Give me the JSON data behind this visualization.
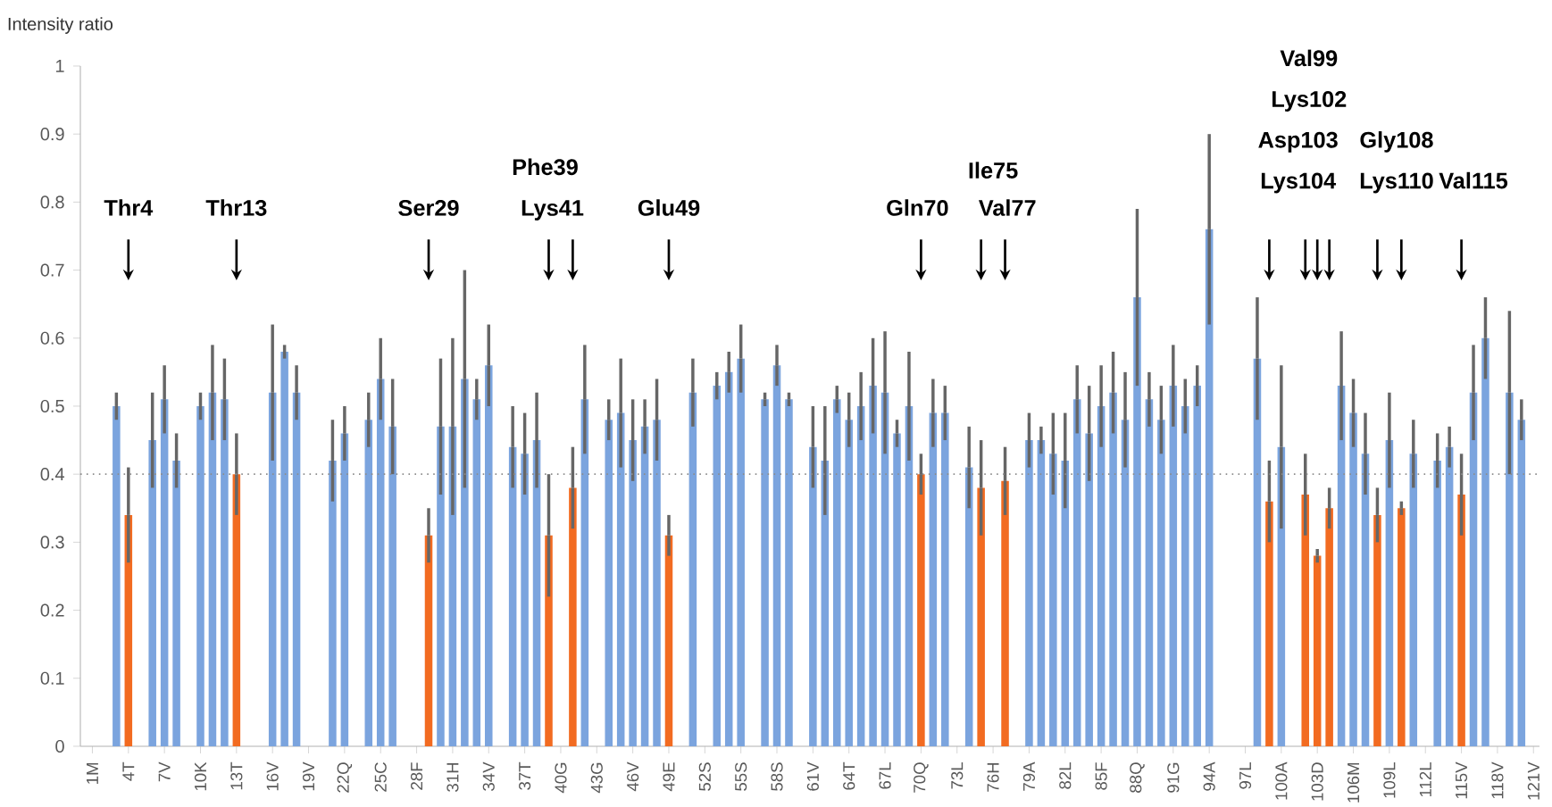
{
  "chart_data": {
    "type": "bar",
    "ylabel": "Intensity ratio",
    "categories": [
      "1M",
      null,
      null,
      "4T",
      null,
      null,
      "7V",
      null,
      null,
      "10K",
      null,
      null,
      "13T",
      null,
      null,
      "16V",
      null,
      null,
      "19V",
      null,
      null,
      "22Q",
      null,
      null,
      "25C",
      null,
      null,
      "28F",
      null,
      null,
      "31H",
      null,
      null,
      "34V",
      null,
      null,
      "37T",
      null,
      null,
      "40G",
      null,
      null,
      "43G",
      null,
      null,
      "46V",
      null,
      null,
      "49E",
      null,
      null,
      "52S",
      null,
      null,
      "55S",
      null,
      null,
      "58S",
      null,
      null,
      "61V",
      null,
      null,
      "64T",
      null,
      null,
      "67L",
      null,
      null,
      "70Q",
      null,
      null,
      "73L",
      null,
      null,
      "76H",
      null,
      null,
      "79A",
      null,
      null,
      "82L",
      null,
      null,
      "85F",
      null,
      null,
      "88Q",
      null,
      null,
      "91G",
      null,
      null,
      "94A",
      null,
      null,
      "97L",
      null,
      null,
      "100A",
      null,
      null,
      "103D",
      null,
      null,
      "106M",
      null,
      null,
      "109L",
      null,
      null,
      "112L",
      null,
      null,
      "115V",
      null,
      null,
      "118V",
      null,
      null,
      "121V"
    ],
    "values": [
      null,
      null,
      0.5,
      0.34,
      null,
      0.45,
      0.51,
      0.42,
      null,
      0.5,
      0.52,
      0.51,
      0.4,
      null,
      null,
      0.52,
      0.58,
      0.52,
      null,
      null,
      0.42,
      0.46,
      null,
      0.48,
      0.54,
      0.47,
      null,
      null,
      0.31,
      0.47,
      0.47,
      0.54,
      0.51,
      0.56,
      null,
      0.44,
      0.43,
      0.45,
      0.31,
      null,
      0.38,
      0.51,
      null,
      0.48,
      0.49,
      0.45,
      0.47,
      0.48,
      0.31,
      null,
      0.52,
      null,
      0.53,
      0.55,
      0.57,
      null,
      0.51,
      0.56,
      0.51,
      null,
      0.44,
      0.42,
      0.51,
      0.48,
      0.5,
      0.53,
      0.52,
      0.46,
      0.5,
      0.4,
      0.49,
      0.49,
      null,
      0.41,
      0.38,
      null,
      0.39,
      null,
      0.45,
      0.45,
      0.43,
      0.42,
      0.51,
      0.46,
      0.5,
      0.52,
      0.48,
      0.66,
      0.51,
      0.48,
      0.53,
      0.5,
      0.53,
      0.76,
      null,
      null,
      null,
      0.57,
      0.36,
      0.44,
      null,
      0.37,
      0.28,
      0.35,
      0.53,
      0.49,
      0.43,
      0.34,
      0.45,
      0.35,
      0.43,
      null,
      0.42,
      0.44,
      0.37,
      0.52,
      0.6,
      null,
      0.52,
      0.48,
      null
    ],
    "errors": [
      null,
      null,
      0.02,
      0.07,
      null,
      0.07,
      0.05,
      0.04,
      null,
      0.02,
      0.07,
      0.06,
      0.06,
      null,
      null,
      0.1,
      0.01,
      0.04,
      null,
      null,
      0.06,
      0.04,
      null,
      0.04,
      0.06,
      0.07,
      null,
      null,
      0.04,
      0.1,
      0.13,
      0.16,
      0.03,
      0.06,
      null,
      0.06,
      0.06,
      0.07,
      0.09,
      null,
      0.06,
      0.08,
      null,
      0.03,
      0.08,
      0.06,
      0.04,
      0.06,
      0.03,
      null,
      0.05,
      null,
      0.02,
      0.03,
      0.05,
      null,
      0.01,
      0.03,
      0.01,
      null,
      0.06,
      0.08,
      0.02,
      0.04,
      0.05,
      0.07,
      0.09,
      0.02,
      0.08,
      0.03,
      0.05,
      0.04,
      null,
      0.06,
      0.07,
      null,
      0.05,
      null,
      0.04,
      0.02,
      0.06,
      0.07,
      0.05,
      0.07,
      0.06,
      0.06,
      0.07,
      0.13,
      0.04,
      0.05,
      0.06,
      0.04,
      0.03,
      0.14,
      null,
      null,
      null,
      0.09,
      0.06,
      0.12,
      null,
      0.06,
      0.01,
      0.03,
      0.08,
      0.05,
      0.06,
      0.04,
      0.07,
      0.01,
      0.05,
      null,
      0.04,
      0.03,
      0.06,
      0.07,
      0.06,
      null,
      0.12,
      0.03,
      null
    ],
    "colors": [
      "#7ba4de",
      "#7ba4de",
      "#7ba4de",
      "#f26b21",
      "#7ba4de",
      "#7ba4de",
      "#7ba4de",
      "#7ba4de",
      "#7ba4de",
      "#7ba4de",
      "#7ba4de",
      "#7ba4de",
      "#f26b21",
      "#7ba4de",
      "#7ba4de",
      "#7ba4de",
      "#7ba4de",
      "#7ba4de",
      "#7ba4de",
      "#7ba4de",
      "#7ba4de",
      "#7ba4de",
      "#7ba4de",
      "#7ba4de",
      "#7ba4de",
      "#7ba4de",
      "#7ba4de",
      "#7ba4de",
      "#f26b21",
      "#7ba4de",
      "#7ba4de",
      "#7ba4de",
      "#7ba4de",
      "#7ba4de",
      "#7ba4de",
      "#7ba4de",
      "#7ba4de",
      "#7ba4de",
      "#f26b21",
      "#7ba4de",
      "#f26b21",
      "#7ba4de",
      "#7ba4de",
      "#7ba4de",
      "#7ba4de",
      "#7ba4de",
      "#7ba4de",
      "#7ba4de",
      "#f26b21",
      "#7ba4de",
      "#7ba4de",
      "#7ba4de",
      "#7ba4de",
      "#7ba4de",
      "#7ba4de",
      "#7ba4de",
      "#7ba4de",
      "#7ba4de",
      "#7ba4de",
      "#7ba4de",
      "#7ba4de",
      "#7ba4de",
      "#7ba4de",
      "#7ba4de",
      "#7ba4de",
      "#7ba4de",
      "#7ba4de",
      "#7ba4de",
      "#7ba4de",
      "#f26b21",
      "#7ba4de",
      "#7ba4de",
      "#7ba4de",
      "#7ba4de",
      "#f26b21",
      "#7ba4de",
      "#f26b21",
      "#7ba4de",
      "#7ba4de",
      "#7ba4de",
      "#7ba4de",
      "#7ba4de",
      "#7ba4de",
      "#7ba4de",
      "#7ba4de",
      "#7ba4de",
      "#7ba4de",
      "#7ba4de",
      "#7ba4de",
      "#7ba4de",
      "#7ba4de",
      "#7ba4de",
      "#7ba4de",
      "#7ba4de",
      "#7ba4de",
      "#7ba4de",
      "#7ba4de",
      "#7ba4de",
      "#f26b21",
      "#7ba4de",
      "#7ba4de",
      "#f26b21",
      "#f26b21",
      "#f26b21",
      "#7ba4de",
      "#7ba4de",
      "#7ba4de",
      "#f26b21",
      "#7ba4de",
      "#f26b21",
      "#7ba4de",
      "#7ba4de",
      "#7ba4de",
      "#7ba4de",
      "#f26b21",
      "#7ba4de",
      "#7ba4de",
      "#7ba4de",
      "#7ba4de",
      "#7ba4de",
      "#7ba4de"
    ],
    "ylim": [
      0,
      1
    ],
    "yticks": [
      0,
      0.1,
      0.2,
      0.3,
      0.4,
      0.5,
      0.6,
      0.7,
      0.8,
      0.9,
      1
    ],
    "ref_lines": [
      {
        "axis": "y",
        "value": 0.4,
        "color": "#8c8c8c",
        "line_style": "dotted"
      }
    ],
    "annotations": [
      "Thr4",
      "Thr13",
      "Ser29",
      "Phe39",
      "Lys41",
      "Glu49",
      "Gln70",
      "Ile75",
      "Val77",
      "Val99",
      "Lys102",
      "Asp103",
      "Lys104",
      "Gly108",
      "Lys110",
      "Val115"
    ],
    "grid": false
  }
}
